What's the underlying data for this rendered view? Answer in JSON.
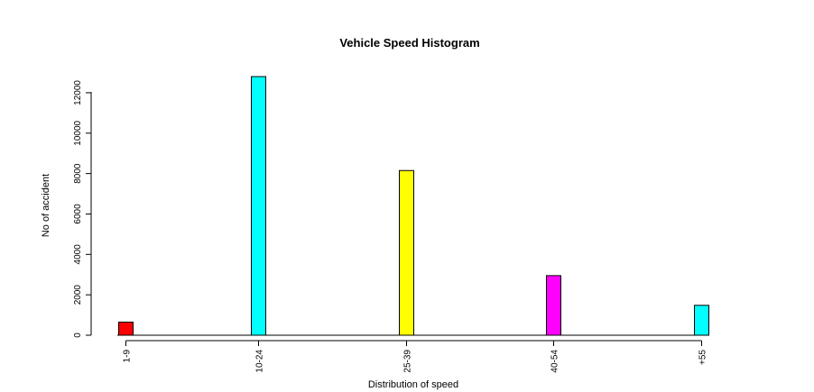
{
  "chart_data": {
    "type": "bar",
    "title": "Vehicle Speed Histogram",
    "xlabel": "Distribution of speed",
    "ylabel": "No of accident",
    "categories": [
      "1-9",
      "10-24",
      "25-39",
      "40-54",
      "+55"
    ],
    "values": [
      650,
      12800,
      8150,
      2950,
      1480
    ],
    "colors": [
      "#FF0000",
      "#00FFFF",
      "#FFFF00",
      "#FF00FF",
      "#00FFFF"
    ],
    "yticks": [
      0,
      2000,
      4000,
      6000,
      8000,
      10000,
      12000
    ],
    "ylim": [
      0,
      12800
    ],
    "grid": false,
    "legend": "none"
  }
}
